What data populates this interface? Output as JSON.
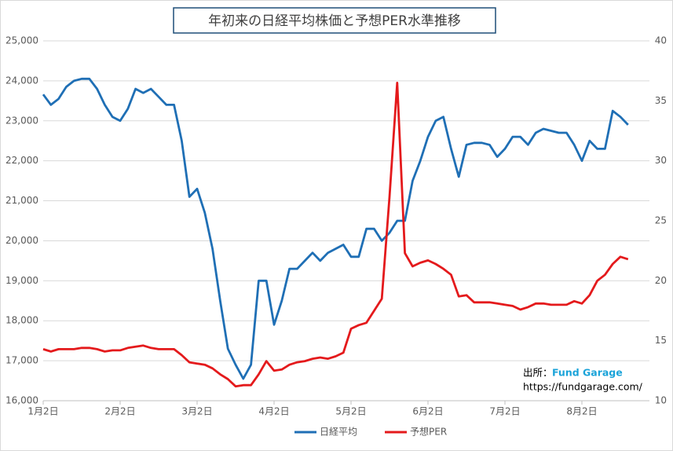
{
  "chart_data": {
    "type": "line",
    "title": "年初来の日経平均株価と予想PER水準推移",
    "source_label": "出所：",
    "source_name": "Fund Garage",
    "source_url": "https://fundgarage.com/",
    "categories": [
      "1月2日",
      null,
      null,
      null,
      null,
      null,
      null,
      null,
      null,
      null,
      "2月2日",
      null,
      null,
      null,
      null,
      null,
      null,
      null,
      null,
      null,
      "3月2日",
      null,
      null,
      null,
      null,
      null,
      null,
      null,
      null,
      null,
      "4月2日",
      null,
      null,
      null,
      null,
      null,
      null,
      null,
      null,
      null,
      "5月2日",
      null,
      null,
      null,
      null,
      null,
      null,
      null,
      null,
      null,
      "6月2日",
      null,
      null,
      null,
      null,
      null,
      null,
      null,
      null,
      null,
      "7月2日",
      null,
      null,
      null,
      null,
      null,
      null,
      null,
      null,
      null,
      "8月2日",
      null,
      null,
      null,
      null,
      null,
      null
    ],
    "series": [
      {
        "name": "日経平均",
        "color": "#1f6fb5",
        "values": [
          23660,
          23400,
          23550,
          23850,
          24000,
          24050,
          24050,
          23800,
          23400,
          23100,
          23000,
          23300,
          23800,
          23700,
          23800,
          23600,
          23400,
          23400,
          22500,
          21100,
          21300,
          20700,
          19800,
          18500,
          17300,
          16900,
          16550,
          16900,
          19000,
          19000,
          17900,
          18500,
          19300,
          19300,
          19500,
          19700,
          19500,
          19700,
          19800,
          19900,
          19600,
          19600,
          20300,
          20300,
          20000,
          20200,
          20500,
          20500,
          21500,
          22000,
          22600,
          23000,
          23100,
          22300,
          21600,
          22400,
          22450,
          22450,
          22400,
          22100,
          22300,
          22600,
          22600,
          22400,
          22700,
          22800,
          22750,
          22700,
          22700,
          22400,
          22000,
          22500,
          22300,
          22300,
          23250,
          23100,
          22900
        ]
      },
      {
        "name": "予想PER",
        "color": "#e41a1c",
        "axis": "y2",
        "values": [
          14.3,
          14.1,
          14.3,
          14.3,
          14.3,
          14.4,
          14.4,
          14.3,
          14.1,
          14.2,
          14.2,
          14.4,
          14.5,
          14.6,
          14.4,
          14.3,
          14.3,
          14.3,
          13.8,
          13.2,
          13.1,
          13.0,
          12.7,
          12.2,
          11.8,
          11.2,
          11.3,
          11.3,
          12.2,
          13.3,
          12.5,
          12.6,
          13.0,
          13.2,
          13.3,
          13.5,
          13.6,
          13.5,
          13.7,
          14.0,
          16.0,
          16.3,
          16.5,
          17.5,
          18.5,
          27,
          36.5,
          22.3,
          21.2,
          21.5,
          21.7,
          21.4,
          21.0,
          20.5,
          18.7,
          18.8,
          18.2,
          18.2,
          18.2,
          18.1,
          18.0,
          17.9,
          17.6,
          17.8,
          18.1,
          18.1,
          18.0,
          18.0,
          18.0,
          18.3,
          18.1,
          18.8,
          20.0,
          20.5,
          21.4,
          22.0,
          21.8
        ]
      }
    ],
    "ylim": [
      16000,
      25000
    ],
    "yticks": [
      {
        "value": 16000,
        "label": "16,000"
      },
      {
        "value": 17000,
        "label": "17,000"
      },
      {
        "value": 18000,
        "label": "18,000"
      },
      {
        "value": 19000,
        "label": "19,000"
      },
      {
        "value": 20000,
        "label": "20,000"
      },
      {
        "value": 21000,
        "label": "21,000"
      },
      {
        "value": 22000,
        "label": "22,000"
      },
      {
        "value": 23000,
        "label": "23,000"
      },
      {
        "value": 24000,
        "label": "24,000"
      },
      {
        "value": 25000,
        "label": "25,000"
      }
    ],
    "y2lim": [
      10,
      40
    ],
    "y2ticks": [
      10,
      15,
      20,
      25,
      30,
      35,
      40
    ],
    "grid": true,
    "legend": "bottom"
  }
}
